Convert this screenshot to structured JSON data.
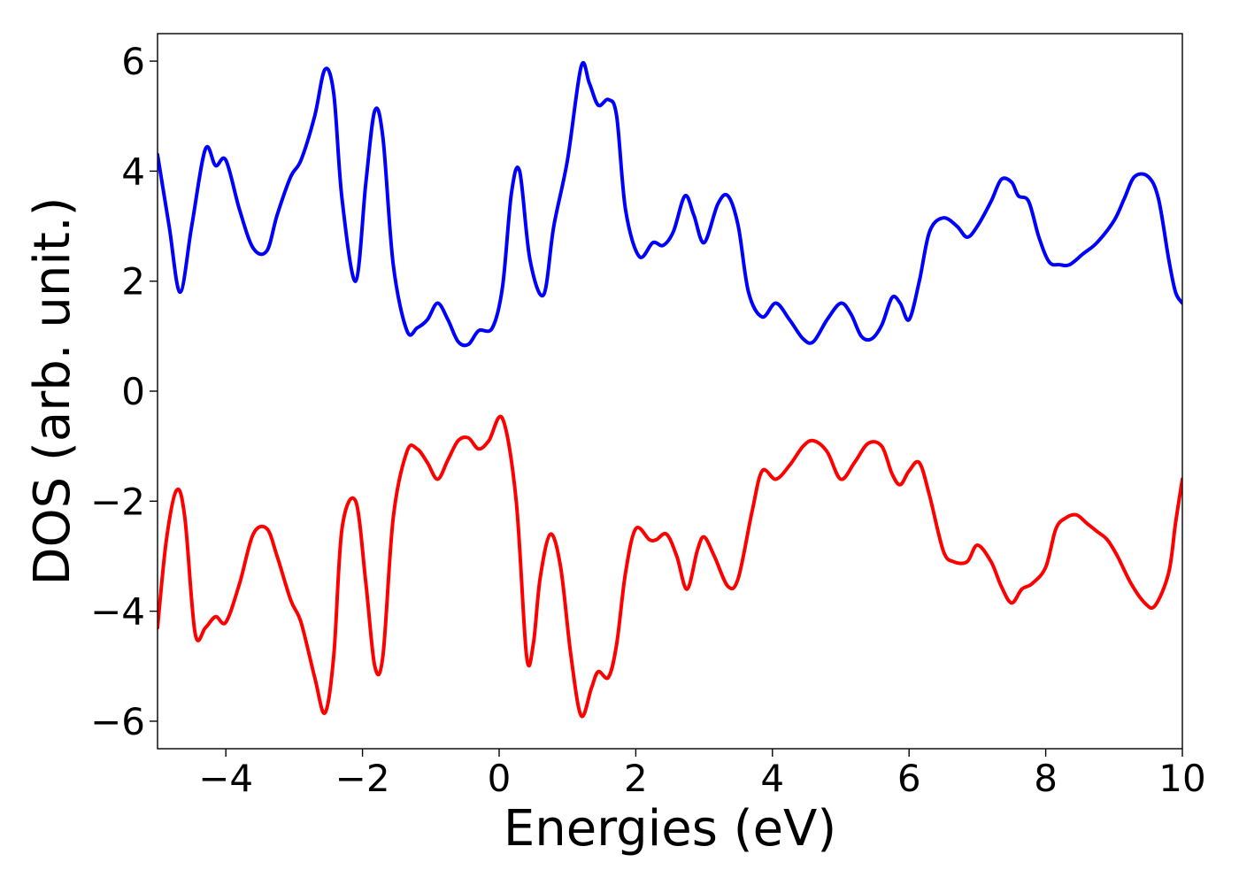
{
  "chart_data": {
    "type": "line",
    "title": "",
    "xlabel": "Energies (eV)",
    "ylabel": "DOS (arb. unit.)",
    "xlim": [
      -5,
      10
    ],
    "ylim": [
      -6.5,
      6.5
    ],
    "xticks": [
      -4,
      -2,
      0,
      2,
      4,
      6,
      8,
      10
    ],
    "yticks": [
      -6,
      -4,
      -2,
      0,
      2,
      4,
      6
    ],
    "xtick_labels": [
      "−4",
      "−2",
      "0",
      "2",
      "4",
      "6",
      "8",
      "10"
    ],
    "ytick_labels": [
      "−6",
      "−4",
      "−2",
      "0",
      "2",
      "4",
      "6"
    ],
    "grid": false,
    "legend": "none",
    "series": [
      {
        "color": "#0000ff",
        "x": [
          -5.0,
          -4.83,
          -4.67,
          -4.5,
          -4.3,
          -4.15,
          -4.0,
          -3.8,
          -3.6,
          -3.4,
          -3.25,
          -3.05,
          -2.9,
          -2.7,
          -2.55,
          -2.42,
          -2.3,
          -2.1,
          -1.95,
          -1.82,
          -1.7,
          -1.55,
          -1.35,
          -1.2,
          -1.05,
          -0.9,
          -0.75,
          -0.6,
          -0.45,
          -0.3,
          -0.1,
          0.05,
          0.18,
          0.3,
          0.45,
          0.65,
          0.8,
          1.0,
          1.2,
          1.32,
          1.45,
          1.6,
          1.72,
          1.85,
          2.05,
          2.25,
          2.4,
          2.55,
          2.72,
          2.85,
          3.0,
          3.2,
          3.35,
          3.5,
          3.65,
          3.85,
          4.05,
          4.25,
          4.45,
          4.6,
          4.8,
          5.0,
          5.15,
          5.3,
          5.45,
          5.6,
          5.75,
          5.87,
          6.0,
          6.15,
          6.3,
          6.5,
          6.7,
          6.85,
          7.0,
          7.2,
          7.35,
          7.5,
          7.6,
          7.75,
          7.9,
          8.05,
          8.2,
          8.35,
          8.55,
          8.75,
          9.0,
          9.15,
          9.3,
          9.5,
          9.65,
          9.8,
          9.9,
          10.0
        ],
        "y": [
          4.3,
          3.0,
          1.8,
          3.0,
          4.4,
          4.1,
          4.2,
          3.3,
          2.6,
          2.55,
          3.2,
          3.9,
          4.2,
          5.0,
          5.85,
          5.4,
          3.5,
          2.0,
          3.8,
          5.1,
          4.6,
          2.3,
          1.1,
          1.15,
          1.3,
          1.6,
          1.3,
          0.9,
          0.85,
          1.1,
          1.15,
          1.9,
          3.6,
          4.0,
          2.4,
          1.75,
          3.0,
          4.2,
          5.9,
          5.6,
          5.2,
          5.3,
          5.0,
          3.3,
          2.45,
          2.7,
          2.65,
          2.9,
          3.55,
          3.2,
          2.7,
          3.4,
          3.55,
          3.0,
          1.8,
          1.35,
          1.6,
          1.3,
          0.95,
          0.9,
          1.3,
          1.6,
          1.4,
          1.0,
          0.95,
          1.2,
          1.7,
          1.6,
          1.3,
          2.0,
          2.9,
          3.15,
          3.0,
          2.8,
          3.0,
          3.45,
          3.85,
          3.8,
          3.55,
          3.45,
          2.8,
          2.35,
          2.3,
          2.3,
          2.5,
          2.7,
          3.1,
          3.5,
          3.9,
          3.9,
          3.5,
          2.4,
          1.8,
          1.6
        ]
      },
      {
        "color": "#ff0000",
        "x": [
          -5.0,
          -4.87,
          -4.72,
          -4.6,
          -4.45,
          -4.3,
          -4.15,
          -4.0,
          -3.8,
          -3.6,
          -3.4,
          -3.25,
          -3.05,
          -2.9,
          -2.7,
          -2.55,
          -2.42,
          -2.3,
          -2.1,
          -1.95,
          -1.82,
          -1.7,
          -1.55,
          -1.35,
          -1.2,
          -1.05,
          -0.9,
          -0.75,
          -0.6,
          -0.45,
          -0.3,
          -0.15,
          0.05,
          0.25,
          0.4,
          0.5,
          0.6,
          0.75,
          0.9,
          1.05,
          1.2,
          1.35,
          1.45,
          1.6,
          1.72,
          1.85,
          2.0,
          2.2,
          2.3,
          2.45,
          2.6,
          2.75,
          2.9,
          3.0,
          3.15,
          3.35,
          3.5,
          3.7,
          3.85,
          4.05,
          4.25,
          4.45,
          4.6,
          4.8,
          5.0,
          5.2,
          5.4,
          5.6,
          5.75,
          5.87,
          6.0,
          6.15,
          6.3,
          6.5,
          6.65,
          6.85,
          7.0,
          7.2,
          7.35,
          7.5,
          7.65,
          7.8,
          8.0,
          8.15,
          8.3,
          8.45,
          8.6,
          8.75,
          8.9,
          9.05,
          9.25,
          9.45,
          9.6,
          9.8,
          9.9,
          10.0
        ],
        "y": [
          -4.3,
          -2.7,
          -1.8,
          -2.3,
          -4.4,
          -4.3,
          -4.1,
          -4.2,
          -3.5,
          -2.6,
          -2.5,
          -3.0,
          -3.8,
          -4.2,
          -5.2,
          -5.85,
          -4.8,
          -2.5,
          -2.0,
          -3.5,
          -5.0,
          -4.8,
          -2.3,
          -1.1,
          -1.05,
          -1.3,
          -1.6,
          -1.25,
          -0.9,
          -0.85,
          -1.05,
          -0.9,
          -0.5,
          -2.0,
          -4.8,
          -4.6,
          -3.4,
          -2.6,
          -3.2,
          -4.8,
          -5.9,
          -5.4,
          -5.1,
          -5.2,
          -4.6,
          -3.3,
          -2.5,
          -2.7,
          -2.7,
          -2.6,
          -3.0,
          -3.6,
          -2.9,
          -2.65,
          -3.0,
          -3.55,
          -3.4,
          -2.2,
          -1.45,
          -1.6,
          -1.35,
          -1.0,
          -0.9,
          -1.1,
          -1.6,
          -1.3,
          -0.95,
          -1.0,
          -1.5,
          -1.7,
          -1.45,
          -1.3,
          -1.9,
          -2.9,
          -3.1,
          -3.1,
          -2.8,
          -3.1,
          -3.55,
          -3.85,
          -3.6,
          -3.5,
          -3.2,
          -2.5,
          -2.3,
          -2.25,
          -2.4,
          -2.55,
          -2.7,
          -3.0,
          -3.5,
          -3.85,
          -3.9,
          -3.3,
          -2.4,
          -1.6
        ]
      }
    ]
  }
}
